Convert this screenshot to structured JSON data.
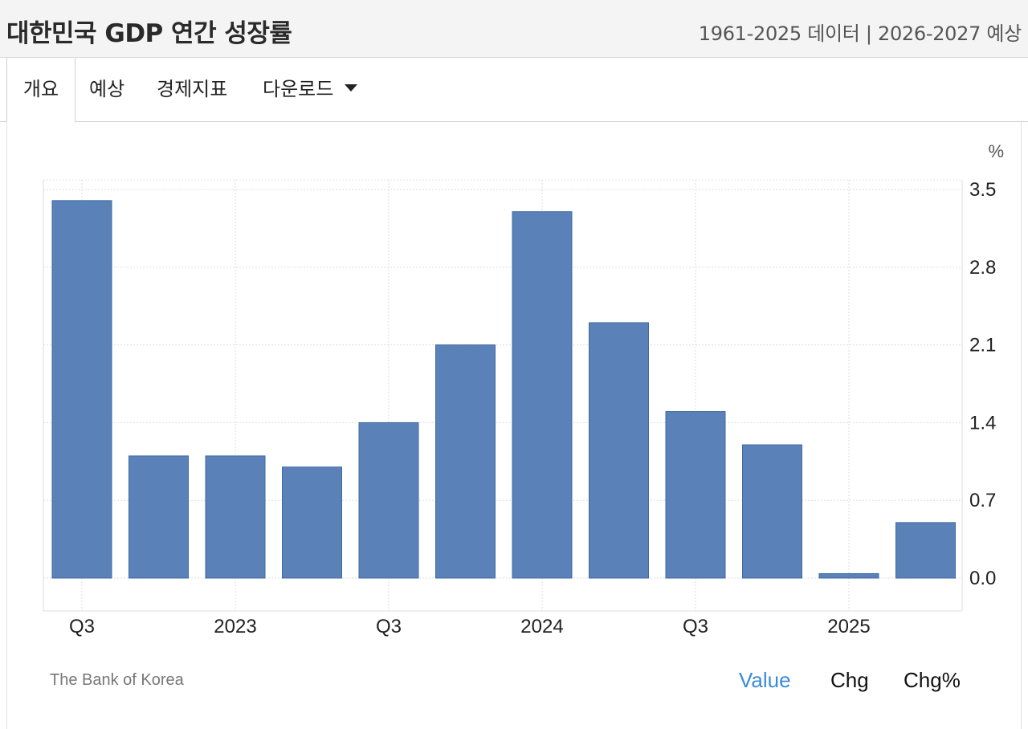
{
  "header": {
    "title": "대한민국 GDP 연간 성장률",
    "subtitle": "1961-2025 데이터 | 2026-2027 예상"
  },
  "tabs": [
    {
      "label": "개요",
      "active": true
    },
    {
      "label": "예상",
      "active": false
    },
    {
      "label": "경제지표",
      "active": false
    },
    {
      "label": "다운로드",
      "active": false
    }
  ],
  "chart_data": {
    "type": "bar",
    "unit": "%",
    "categories": [
      "2022 Q3",
      "2022 Q4",
      "2023 Q1",
      "2023 Q2",
      "2023 Q3",
      "2023 Q4",
      "2024 Q1",
      "2024 Q2",
      "2024 Q3",
      "2024 Q4",
      "2025 Q1",
      "2025 Q2"
    ],
    "values": [
      3.4,
      1.1,
      1.1,
      1.0,
      1.4,
      2.1,
      3.3,
      2.3,
      1.5,
      1.2,
      0.04,
      0.5
    ],
    "x_tick_labels": [
      {
        "label": "Q3",
        "at": "2022 Q3"
      },
      {
        "label": "2023",
        "at": "2023 Q1"
      },
      {
        "label": "Q3",
        "at": "2023 Q3"
      },
      {
        "label": "2024",
        "at": "2024 Q1"
      },
      {
        "label": "Q3",
        "at": "2024 Q3"
      },
      {
        "label": "2025",
        "at": "2025 Q1"
      }
    ],
    "y_ticks": [
      "0.0",
      "0.7",
      "1.4",
      "2.1",
      "2.8",
      "3.5"
    ],
    "ylim": [
      0,
      3.5
    ],
    "grid": true,
    "bar_color": "#5a82b8"
  },
  "footer": {
    "source": "The Bank of Korea",
    "toggles": [
      {
        "label": "Value",
        "active": true
      },
      {
        "label": "Chg",
        "active": false
      },
      {
        "label": "Chg%",
        "active": false
      }
    ]
  }
}
